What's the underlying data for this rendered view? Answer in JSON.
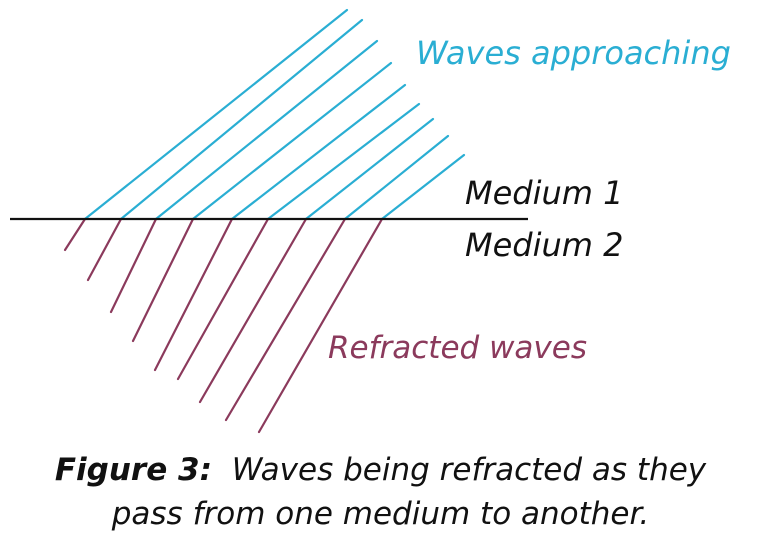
{
  "labels": {
    "waves_approaching": "Waves approaching",
    "medium_1": "Medium 1",
    "medium_2": "Medium 2",
    "refracted_waves": "Refracted waves"
  },
  "caption": {
    "figure_label": "Figure 3",
    "separator": ":",
    "text_line1": "Waves being refracted as they",
    "text_line2": "pass from one medium to another."
  },
  "colors": {
    "incident_waves": "#2aaed3",
    "refracted_waves": "#8b3a5c",
    "boundary": "#111111",
    "text": "#111111"
  },
  "icons": []
}
